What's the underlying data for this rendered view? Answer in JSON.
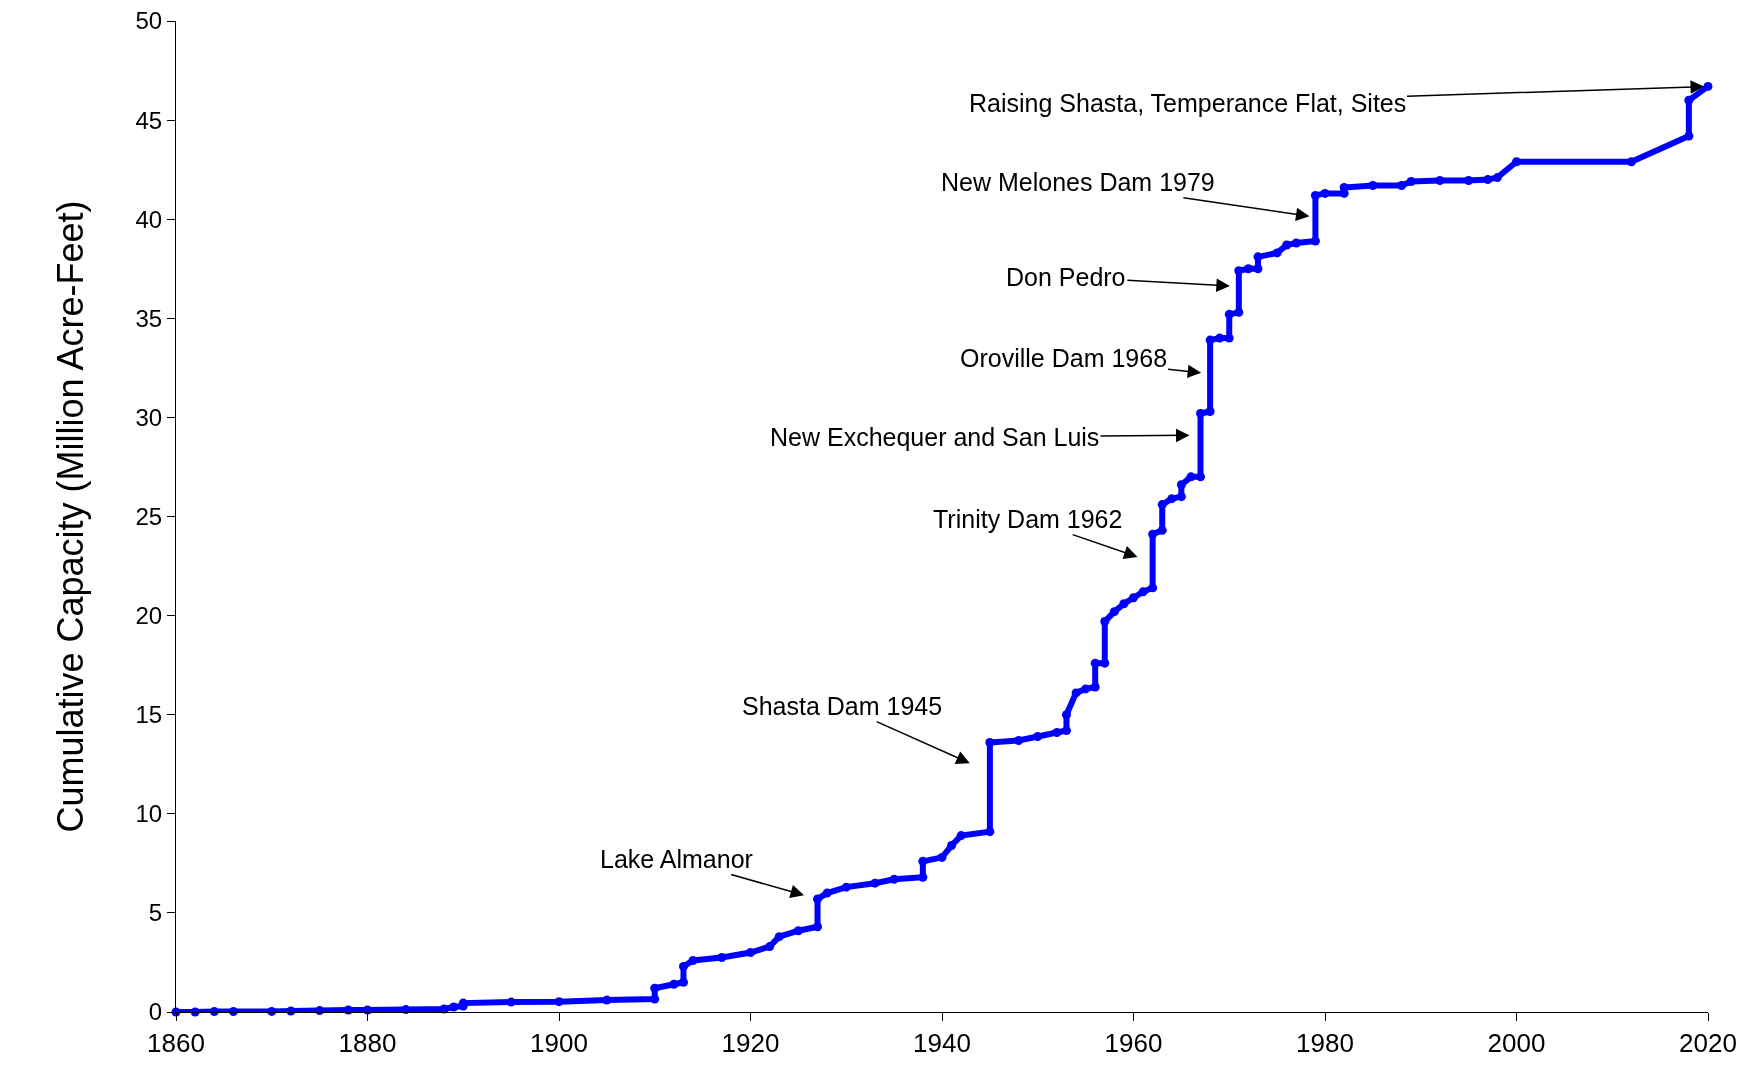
{
  "chart_data": {
    "type": "line",
    "ylabel": "Cumulative Capacity (Million Acre-Feet)",
    "x": [
      1860,
      1862,
      1864,
      1866,
      1870,
      1872,
      1875,
      1878,
      1880,
      1884,
      1888,
      1889,
      1890,
      1890,
      1895,
      1900,
      1905,
      1910,
      1910,
      1912,
      1913,
      1913,
      1914,
      1917,
      1920,
      1922,
      1923,
      1925,
      1927,
      1927,
      1928,
      1930,
      1933,
      1935,
      1938,
      1938,
      1940,
      1941,
      1942,
      1945,
      1945,
      1948,
      1950,
      1952,
      1953,
      1953,
      1954,
      1955,
      1956,
      1956,
      1957,
      1957,
      1958,
      1959,
      1960,
      1961,
      1962,
      1962,
      1963,
      1963,
      1964,
      1965,
      1965,
      1966,
      1967,
      1967,
      1968,
      1968,
      1969,
      1970,
      1970,
      1971,
      1971,
      1972,
      1973,
      1973,
      1975,
      1976,
      1977,
      1979,
      1979,
      1980,
      1982,
      1982,
      1985,
      1988,
      1989,
      1992,
      1995,
      1997,
      1998,
      2000,
      2012,
      2018,
      2018,
      2020
    ],
    "series": [
      {
        "color": "#0000ff",
        "values": [
          0,
          0,
          0.02,
          0.02,
          0.03,
          0.05,
          0.07,
          0.1,
          0.1,
          0.12,
          0.15,
          0.25,
          0.3,
          0.45,
          0.5,
          0.52,
          0.6,
          0.65,
          1.2,
          1.4,
          1.5,
          2.3,
          2.6,
          2.75,
          3.0,
          3.3,
          3.8,
          4.1,
          4.3,
          5.7,
          6.0,
          6.3,
          6.5,
          6.7,
          6.8,
          7.6,
          7.8,
          8.4,
          8.9,
          9.1,
          13.6,
          13.7,
          13.9,
          14.1,
          14.2,
          15.0,
          16.1,
          16.3,
          16.4,
          17.6,
          17.6,
          19.7,
          20.2,
          20.6,
          20.9,
          21.2,
          21.4,
          24.1,
          24.3,
          25.6,
          25.9,
          26.0,
          26.6,
          27.0,
          27.0,
          30.2,
          30.3,
          33.9,
          34.0,
          34.0,
          35.2,
          35.3,
          37.4,
          37.5,
          37.5,
          38.1,
          38.3,
          38.7,
          38.8,
          38.9,
          41.2,
          41.3,
          41.3,
          41.6,
          41.7,
          41.7,
          41.9,
          41.95,
          41.95,
          42.0,
          42.1,
          42.9,
          42.9,
          44.2,
          46.0,
          46.7
        ]
      }
    ],
    "xlim": [
      1860,
      2020
    ],
    "xticks": [
      1860,
      1880,
      1900,
      1920,
      1940,
      1960,
      1980,
      2000,
      2020
    ],
    "ylim": [
      0,
      50
    ],
    "yticks": [
      0,
      5,
      10,
      15,
      20,
      25,
      30,
      35,
      40,
      45,
      50
    ],
    "grid": false,
    "marker": "circle",
    "line_style": "solid",
    "annotations": [
      {
        "text": "Lake Almanor",
        "x": 1927,
        "y": 5.7
      },
      {
        "text": "Shasta Dam 1945",
        "x": 1945,
        "y": 12.1
      },
      {
        "text": "Trinity Dam 1962",
        "x": 1962,
        "y": 22.7
      },
      {
        "text": "New Exchequer and San Luis",
        "x": 1967,
        "y": 29.1
      },
      {
        "text": "Oroville Dam 1968",
        "x": 1968,
        "y": 32.2
      },
      {
        "text": "Don Pedro",
        "x": 1971,
        "y": 36.6
      },
      {
        "text": "New Melones Dam 1979",
        "x": 1979,
        "y": 40.1
      },
      {
        "text": "Raising Shasta, Temperance Flat, Sites",
        "x": 2020,
        "y": 46.7
      }
    ]
  }
}
